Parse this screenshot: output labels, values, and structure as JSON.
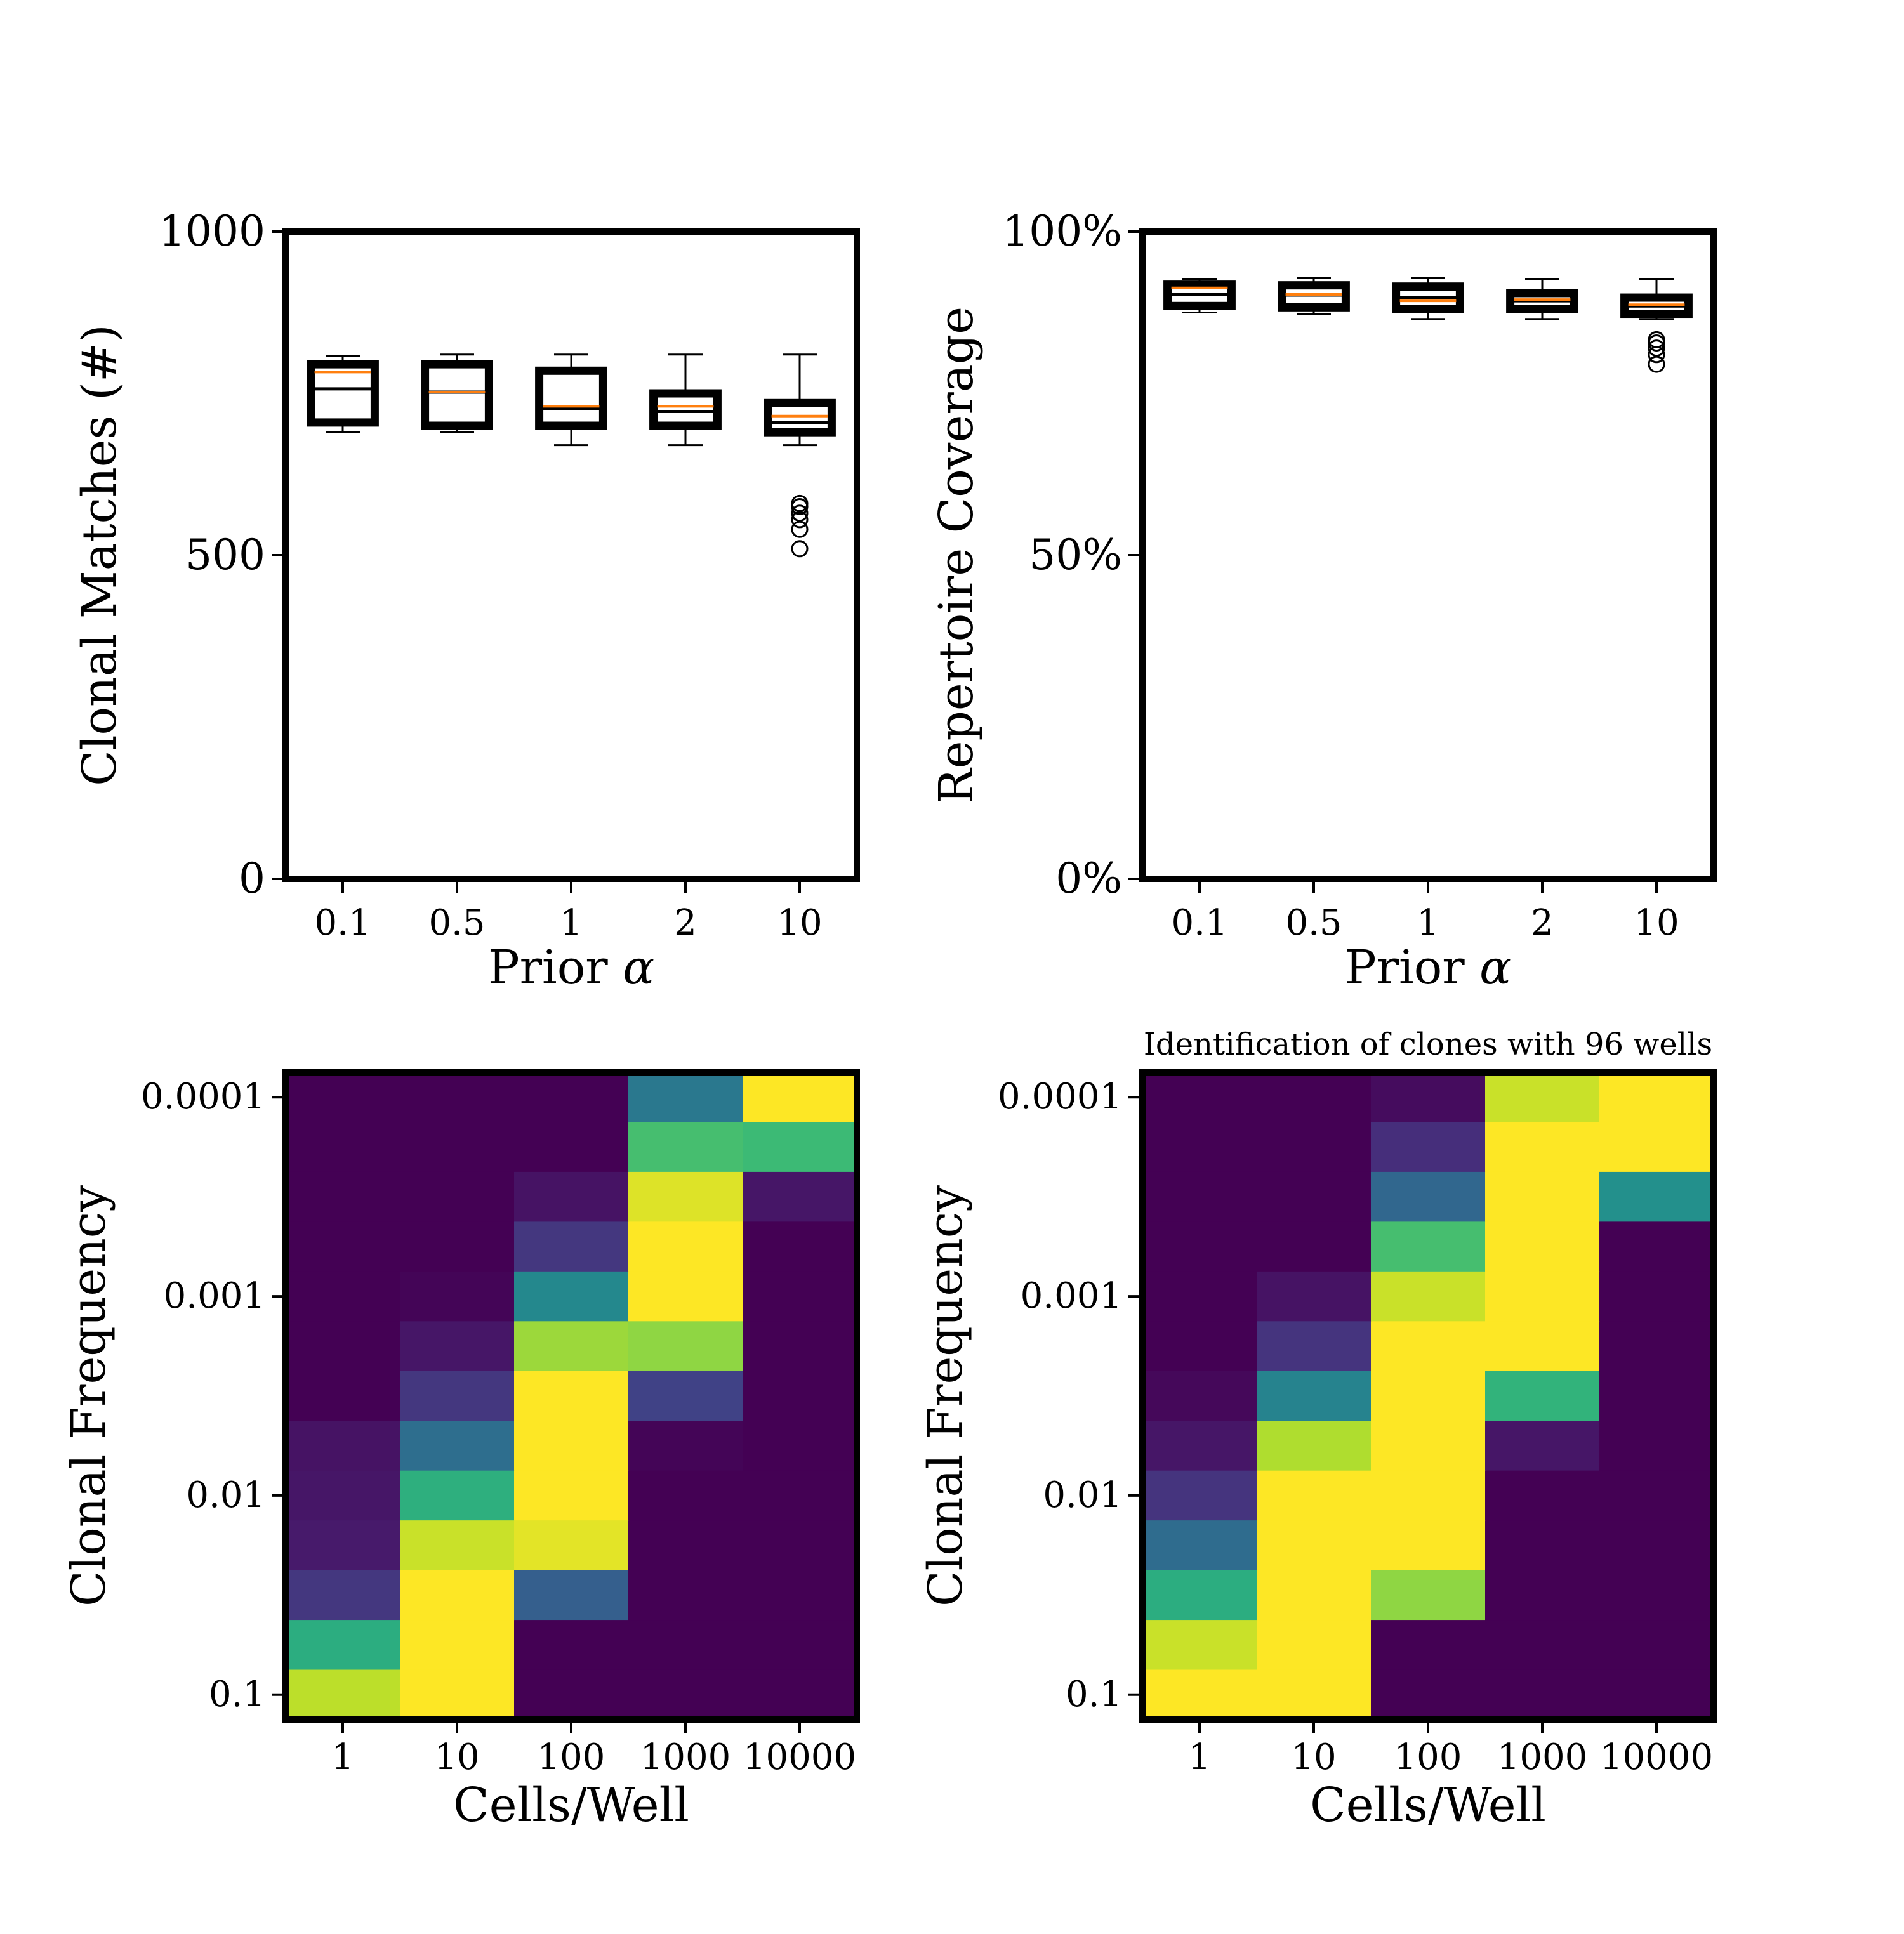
{
  "colors": {
    "frame": "#000000",
    "median": "#ff7f0e",
    "box": "#000000",
    "viridis": [
      "#440154",
      "#482878",
      "#3e4989",
      "#31688e",
      "#26828e",
      "#1f9e89",
      "#35b779",
      "#6ece58",
      "#b5de2b",
      "#fde725"
    ]
  },
  "chart_data": [
    {
      "type": "box",
      "xlabel_text": "Prior ",
      "xlabel_symbol": "α",
      "ylabel": "Clonal Matches (#)",
      "ylim": [
        0,
        1000
      ],
      "yticks": [
        0,
        500,
        1000
      ],
      "ytick_labels": [
        "0",
        "500",
        "1000"
      ],
      "categories": [
        "0.1",
        "0.5",
        "1",
        "2",
        "10"
      ],
      "boxes": [
        {
          "whisker_low": 690,
          "q1": 705,
          "median": 757,
          "q3": 795,
          "whisker_high": 808,
          "mean": 783,
          "outliers": []
        },
        {
          "whisker_low": 690,
          "q1": 700,
          "median": 752,
          "q3": 795,
          "whisker_high": 810,
          "mean": 752,
          "outliers": []
        },
        {
          "whisker_low": 670,
          "q1": 700,
          "median": 727,
          "q3": 785,
          "whisker_high": 810,
          "mean": 730,
          "outliers": []
        },
        {
          "whisker_low": 670,
          "q1": 700,
          "median": 722,
          "q3": 750,
          "whisker_high": 810,
          "mean": 730,
          "outliers": []
        },
        {
          "whisker_low": 670,
          "q1": 690,
          "median": 705,
          "q3": 735,
          "whisker_high": 810,
          "mean": 715,
          "outliers": [
            510,
            540,
            555,
            565,
            575,
            580
          ]
        }
      ]
    },
    {
      "type": "box",
      "xlabel_text": "Prior ",
      "xlabel_symbol": "α",
      "ylabel": "Repertoire Coverage",
      "ylim": [
        0,
        100
      ],
      "yticks": [
        0,
        50,
        100
      ],
      "ytick_labels": [
        "0%",
        "50%",
        "100%"
      ],
      "categories": [
        "0.1",
        "0.5",
        "1",
        "2",
        "10"
      ],
      "boxes": [
        {
          "whisker_low": 87.5,
          "q1": 88.5,
          "median": 90.3,
          "q3": 91.8,
          "whisker_high": 92.7,
          "mean": 91.3,
          "outliers": []
        },
        {
          "whisker_low": 87.3,
          "q1": 88.3,
          "median": 90.2,
          "q3": 91.7,
          "whisker_high": 92.8,
          "mean": 90.3,
          "outliers": []
        },
        {
          "whisker_low": 86.5,
          "q1": 88.0,
          "median": 89.8,
          "q3": 91.5,
          "whisker_high": 92.8,
          "mean": 89.3,
          "outliers": []
        },
        {
          "whisker_low": 86.5,
          "q1": 88.0,
          "median": 89.3,
          "q3": 90.5,
          "whisker_high": 92.7,
          "mean": 89.5,
          "outliers": []
        },
        {
          "whisker_low": 86.5,
          "q1": 87.3,
          "median": 88.5,
          "q3": 89.8,
          "whisker_high": 92.7,
          "mean": 88.7,
          "outliers": [
            79.5,
            81.0,
            82.0,
            82.8,
            83.3
          ]
        }
      ]
    },
    {
      "type": "heatmap",
      "title": "",
      "xlabel": "Cells/Well",
      "ylabel": "Clonal Frequency",
      "x_categories": [
        "1",
        "10",
        "100",
        "1000",
        "10000"
      ],
      "ytick_labels": [
        "0.0001",
        "0.001",
        "0.01",
        "0.1"
      ],
      "ytick_rows": [
        0.5,
        4.5,
        8.5,
        12.5
      ],
      "n_rows": 13,
      "rows": [
        [
          0.0,
          0.0,
          0.0,
          0.4,
          1.0
        ],
        [
          0.0,
          0.0,
          0.0,
          0.7,
          0.68
        ],
        [
          0.0,
          0.0,
          0.05,
          0.95,
          0.06
        ],
        [
          0.0,
          0.0,
          0.16,
          1.0,
          0.0
        ],
        [
          0.0,
          0.01,
          0.47,
          1.0,
          0.0
        ],
        [
          0.0,
          0.06,
          0.85,
          0.83,
          0.0
        ],
        [
          0.0,
          0.16,
          1.0,
          0.2,
          0.0
        ],
        [
          0.05,
          0.36,
          1.0,
          0.01,
          0.0
        ],
        [
          0.06,
          0.63,
          1.0,
          0.0,
          0.0
        ],
        [
          0.07,
          0.92,
          0.96,
          0.0,
          0.0
        ],
        [
          0.16,
          1.0,
          0.3,
          0.0,
          0.0
        ],
        [
          0.62,
          1.0,
          0.0,
          0.0,
          0.0
        ],
        [
          0.9,
          1.0,
          0.0,
          0.0,
          0.0
        ]
      ]
    },
    {
      "type": "heatmap",
      "title": "Identification of clones with 96 wells",
      "xlabel": "Cells/Well",
      "ylabel": "Clonal Frequency",
      "x_categories": [
        "1",
        "10",
        "100",
        "1000",
        "10000"
      ],
      "ytick_labels": [
        "0.0001",
        "0.001",
        "0.01",
        "0.1"
      ],
      "ytick_rows": [
        0.5,
        4.5,
        8.5,
        12.5
      ],
      "n_rows": 13,
      "rows": [
        [
          0.0,
          0.0,
          0.03,
          0.92,
          1.0
        ],
        [
          0.0,
          0.0,
          0.13,
          1.0,
          1.0
        ],
        [
          0.0,
          0.0,
          0.33,
          1.0,
          0.5
        ],
        [
          0.0,
          0.0,
          0.7,
          1.0,
          0.0
        ],
        [
          0.0,
          0.05,
          0.92,
          1.0,
          0.0
        ],
        [
          0.0,
          0.15,
          1.0,
          1.0,
          0.0
        ],
        [
          0.02,
          0.45,
          1.0,
          0.65,
          0.0
        ],
        [
          0.06,
          0.88,
          1.0,
          0.06,
          0.0
        ],
        [
          0.15,
          1.0,
          1.0,
          0.0,
          0.0
        ],
        [
          0.35,
          1.0,
          1.0,
          0.0,
          0.0
        ],
        [
          0.62,
          1.0,
          0.83,
          0.0,
          0.0
        ],
        [
          0.92,
          1.0,
          0.0,
          0.0,
          0.0
        ],
        [
          1.0,
          1.0,
          0.0,
          0.0,
          0.0
        ]
      ]
    }
  ]
}
